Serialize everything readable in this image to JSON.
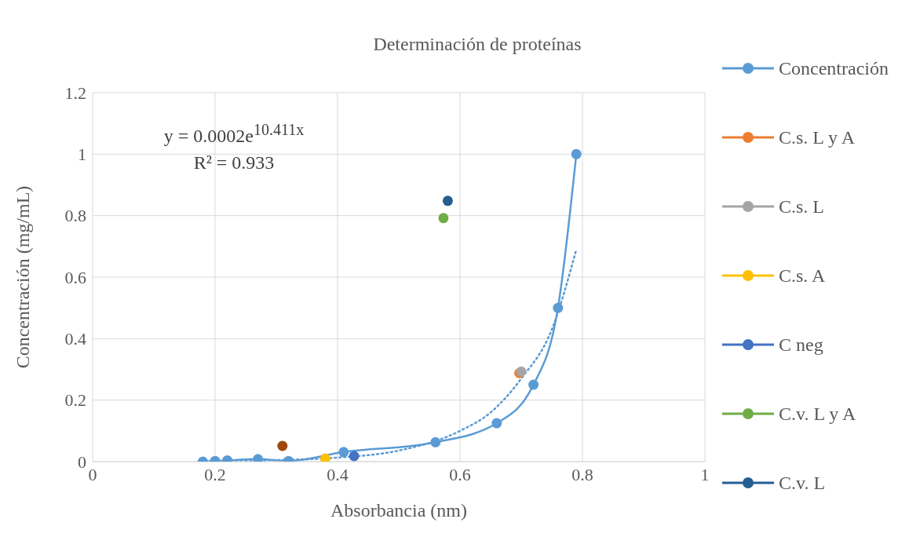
{
  "chart_data": {
    "type": "scatter",
    "title": "Determinación de proteínas",
    "xlabel": "Absorbancia (nm)",
    "ylabel": "Concentración (mg/mL)",
    "annotations": [
      "y = 0.0002e$^{10.411x}$",
      "R² = 0.933"
    ],
    "xlim": [
      0,
      1
    ],
    "xticks": [
      0,
      0.2,
      0.4,
      0.6,
      0.8,
      1
    ],
    "ylim": [
      0,
      1.2
    ],
    "yticks": [
      0,
      0.2,
      0.4,
      0.6,
      0.8,
      1,
      1.2
    ],
    "grid": true,
    "legend": "right",
    "marker": "circle",
    "series": [
      {
        "name": "Concentración",
        "type": "line",
        "line_style": "solid",
        "color": "#5b9bd5",
        "x": [
          0.18,
          0.2,
          0.22,
          0.27,
          0.32,
          0.41,
          0.56,
          0.66,
          0.72,
          0.76,
          0.79
        ],
        "values": [
          0,
          0.002,
          0.004,
          0.008,
          0.002,
          0.031,
          0.063,
          0.125,
          0.25,
          0.5,
          1
        ]
      },
      {
        "name": "C.s. L y A",
        "color": "#ed7d31",
        "x": [
          0.697
        ],
        "values": [
          0.288
        ]
      },
      {
        "name": "C.s. L",
        "color": "#a5a5a5",
        "x": [
          0.7
        ],
        "values": [
          0.293
        ]
      },
      {
        "name": "C.s. A",
        "color": "#ffc000",
        "x": [
          0.38
        ],
        "values": [
          0.01
        ]
      },
      {
        "name": "C neg",
        "color": "#4472c4",
        "x": [
          0.427
        ],
        "values": [
          0.018
        ]
      },
      {
        "name": "C.v. L y A",
        "color": "#70ad47",
        "x": [
          0.573
        ],
        "values": [
          0.792
        ]
      },
      {
        "name": "C.v. L",
        "color": "#255e91",
        "x": [
          0.58
        ],
        "values": [
          0.848
        ]
      },
      {
        "color": "#9e480e",
        "x": [
          0.31
        ],
        "values": [
          0.051
        ]
      },
      {
        "type": "line",
        "line_style": "dotted",
        "marker": "none",
        "color": "#5b9bd5",
        "x": [
          0.18,
          0.3,
          0.4,
          0.5,
          0.6,
          0.65,
          0.7,
          0.75,
          0.79
        ],
        "values": [
          0.001,
          0.005,
          0.013,
          0.036,
          0.1,
          0.16,
          0.27,
          0.43,
          0.69
        ]
      }
    ]
  }
}
